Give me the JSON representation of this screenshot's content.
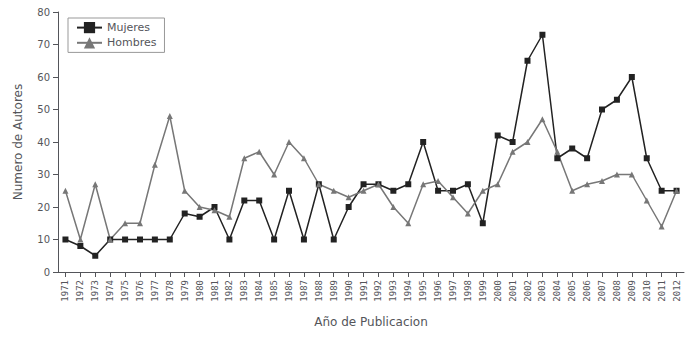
{
  "chart_data": {
    "type": "line",
    "xlabel": "Año de Publicacion",
    "ylabel": "Numero de Autores",
    "x": [
      1971,
      1972,
      1973,
      1974,
      1975,
      1976,
      1977,
      1978,
      1979,
      1980,
      1981,
      1982,
      1983,
      1984,
      1985,
      1986,
      1987,
      1988,
      1989,
      1990,
      1991,
      1992,
      1993,
      1994,
      1995,
      1996,
      1997,
      1998,
      1999,
      2000,
      2001,
      2002,
      2003,
      2004,
      2005,
      2006,
      2007,
      2008,
      2009,
      2010,
      2011,
      2012
    ],
    "series": [
      {
        "name": "Mujeres",
        "color": "#222222",
        "marker": "square",
        "values": [
          10,
          8,
          5,
          10,
          10,
          10,
          10,
          10,
          18,
          17,
          20,
          10,
          22,
          22,
          10,
          25,
          10,
          27,
          10,
          20,
          27,
          27,
          25,
          27,
          40,
          25,
          25,
          27,
          15,
          42,
          40,
          65,
          73,
          35,
          38,
          35,
          50,
          53,
          60,
          35,
          25,
          25
        ]
      },
      {
        "name": "Hombres",
        "color": "#777777",
        "marker": "triangle",
        "values": [
          25,
          10,
          27,
          10,
          15,
          15,
          33,
          48,
          25,
          20,
          19,
          17,
          35,
          37,
          30,
          40,
          35,
          27,
          25,
          23,
          25,
          27,
          20,
          15,
          27,
          28,
          23,
          18,
          25,
          27,
          37,
          40,
          47,
          37,
          25,
          27,
          28,
          30,
          30,
          22,
          14,
          25
        ]
      }
    ],
    "xlim": [
      1970.5,
      2012.5
    ],
    "xticks": [
      1971,
      1972,
      1973,
      1974,
      1975,
      1976,
      1977,
      1978,
      1979,
      1980,
      1981,
      1982,
      1983,
      1984,
      1985,
      1986,
      1987,
      1988,
      1989,
      1990,
      1991,
      1992,
      1993,
      1994,
      1995,
      1996,
      1997,
      1998,
      1999,
      2000,
      2001,
      2002,
      2003,
      2004,
      2005,
      2006,
      2007,
      2008,
      2009,
      2010,
      2011,
      2012
    ],
    "ylim": [
      0,
      80
    ],
    "yticks": [
      0,
      10,
      20,
      30,
      40,
      50,
      60,
      70,
      80
    ],
    "grid": false,
    "legend": "upper left"
  }
}
